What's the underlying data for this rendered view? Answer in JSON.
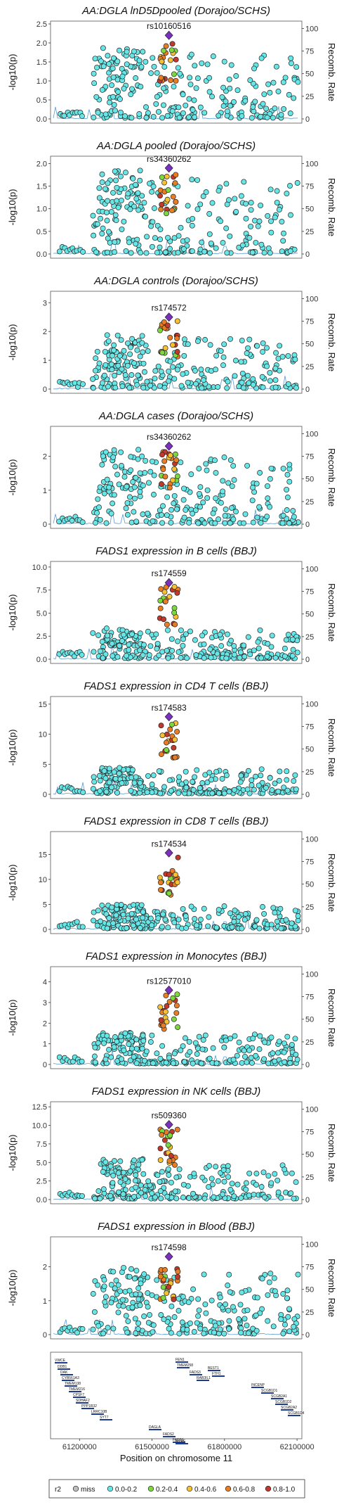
{
  "chart_data": {
    "type": "scatter",
    "x_axis_label": "Position on chromosome 11",
    "x_range": [
      61080000,
      62120000
    ],
    "x_ticks": [
      61200000,
      61500000,
      61800000,
      62100000
    ],
    "y_axis_label_left": "-log10(p)",
    "y_axis_label_right": "Recomb. Rate",
    "right_axis_ticks": [
      0,
      25,
      50,
      75,
      100
    ],
    "lead_x": 61570000,
    "panels": [
      {
        "title": "AA:DGLA lnD5Dpooled (Dorajoo/SCHS)",
        "ymax": 2.5,
        "yticks": [
          "0.0",
          "0.5",
          "1.0",
          "1.5",
          "2.0",
          "2.5"
        ],
        "lead_snp": "rs10160516",
        "lead_p": 2.2,
        "peak": 1.9
      },
      {
        "title": "AA:DGLA pooled (Dorajoo/SCHS)",
        "ymax": 2.1,
        "yticks": [
          "0.0",
          "0.5",
          "1.0",
          "1.5",
          "2.0"
        ],
        "lead_snp": "rs34360262",
        "lead_p": 1.9,
        "peak": 1.85
      },
      {
        "title": "AA:DGLA controls (Dorajoo/SCHS)",
        "ymax": 3.3,
        "yticks": [
          "0",
          "1",
          "2",
          "3"
        ],
        "lead_snp": "rs174572",
        "lead_p": 2.5,
        "peak": 1.9
      },
      {
        "title": "AA:DGLA cases (Dorajoo/SCHS)",
        "ymax": 2.8,
        "yticks": [
          "0",
          "1",
          "2"
        ],
        "lead_snp": "rs34360262",
        "lead_p": 2.3,
        "peak": 2.2
      },
      {
        "title": "FADS1 expression in B cells (BBJ)",
        "ymax": 10.3,
        "yticks": [
          "0.0",
          "2.5",
          "5.0",
          "7.5",
          "10.0"
        ],
        "lead_snp": "rs174559",
        "lead_p": 8.3,
        "peak": 3.4
      },
      {
        "title": "FADS1 expression in CD4 T cells (BBJ)",
        "ymax": 15.8,
        "yticks": [
          "0",
          "5",
          "10",
          "15"
        ],
        "lead_snp": "rs174583",
        "lead_p": 12.9,
        "peak": 4.5
      },
      {
        "title": "FADS1 expression in CD8 T cells (BBJ)",
        "ymax": 19,
        "yticks": [
          "0",
          "5",
          "10",
          "15"
        ],
        "lead_snp": "rs174534",
        "lead_p": 15.3,
        "peak": 5.0
      },
      {
        "title": "FADS1 expression in Monocytes (BBJ)",
        "ymax": 4.6,
        "yticks": [
          "0",
          "1",
          "2",
          "3",
          "4"
        ],
        "lead_snp": "rs12577010",
        "lead_p": 3.6,
        "peak": 1.6
      },
      {
        "title": "FADS1 expression in NK cells (BBJ)",
        "ymax": 12.8,
        "yticks": [
          "0.0",
          "2.5",
          "5.0",
          "7.5",
          "10.0",
          "12.5"
        ],
        "lead_snp": "rs509360",
        "lead_p": 10.1,
        "peak": 5.5
      },
      {
        "title": "FADS1 expression in Blood (BBJ)",
        "ymax": 2.8,
        "yticks": [
          "0",
          "1",
          "2"
        ],
        "lead_snp": "rs174598",
        "lead_p": 2.3,
        "peak": 2.0
      }
    ],
    "genes": [
      "VWCE",
      "DDB1",
      "DAK",
      "CYB561A3",
      "TMEM138",
      "TMEM216",
      "CPSF7",
      "SDHAF2",
      "PPP1R32",
      "LRRC10B",
      "SYT7",
      "DAGLA",
      "FADS2",
      "FADS1",
      "FEN1",
      "TMEM258",
      "MYRF",
      "FADS3",
      "RAB3IL1",
      "BEST1",
      "FTH1",
      "INCENP",
      "SCGB1D1",
      "SCGB2A1",
      "SCGB1D2",
      "SCGB2A2",
      "SCGB1D4"
    ],
    "legend": {
      "title": "r2",
      "entries": [
        {
          "label": "miss",
          "color": "#BEBEBE"
        },
        {
          "label": "0.0-0.2",
          "color": "#66E6E6"
        },
        {
          "label": "0.2-0.4",
          "color": "#7CD93D"
        },
        {
          "label": "0.4-0.6",
          "color": "#F5C031"
        },
        {
          "label": "0.6-0.8",
          "color": "#E97D24"
        },
        {
          "label": "0.8-1.0",
          "color": "#C0392B"
        }
      ],
      "lead_color": "#7B2FBE"
    }
  }
}
